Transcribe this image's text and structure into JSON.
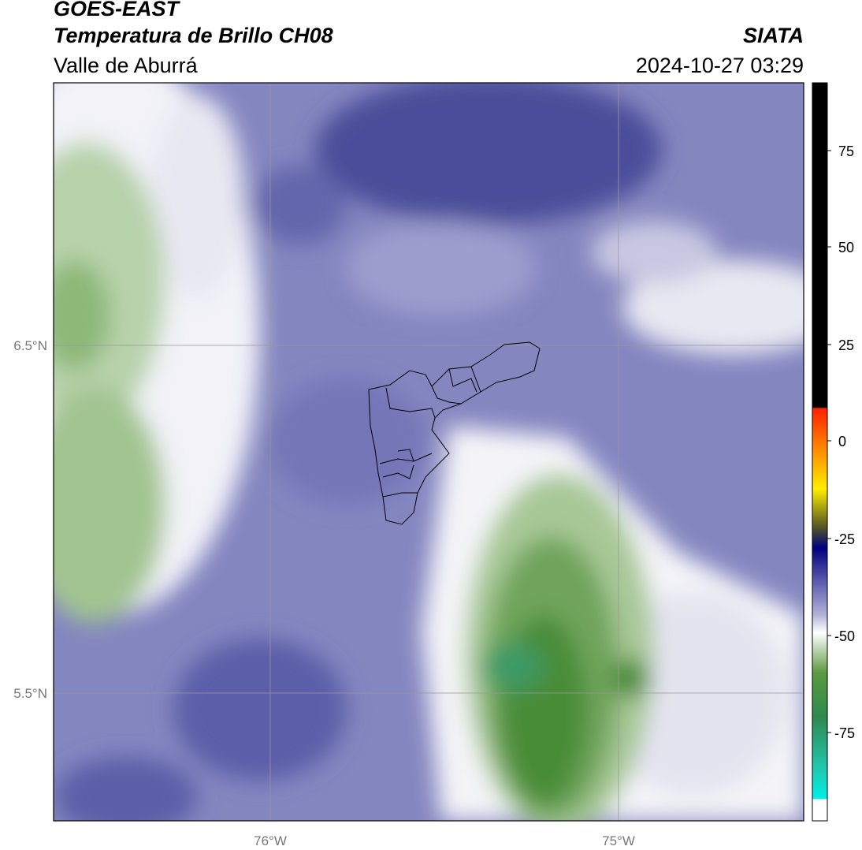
{
  "header": {
    "title": "GOES-EAST",
    "subtitle": "Temperatura de Brillo CH08",
    "region": "Valle de Aburrá",
    "source": "SIATA",
    "datetime": "2024-10-27 03:29"
  },
  "map": {
    "lat_labels": [
      "6.5°N",
      "5.5°N"
    ],
    "lon_labels": [
      "76°W",
      "75°W"
    ]
  },
  "colorbar": {
    "ticks": [
      75,
      50,
      25,
      0,
      -25,
      -50,
      -75
    ]
  }
}
